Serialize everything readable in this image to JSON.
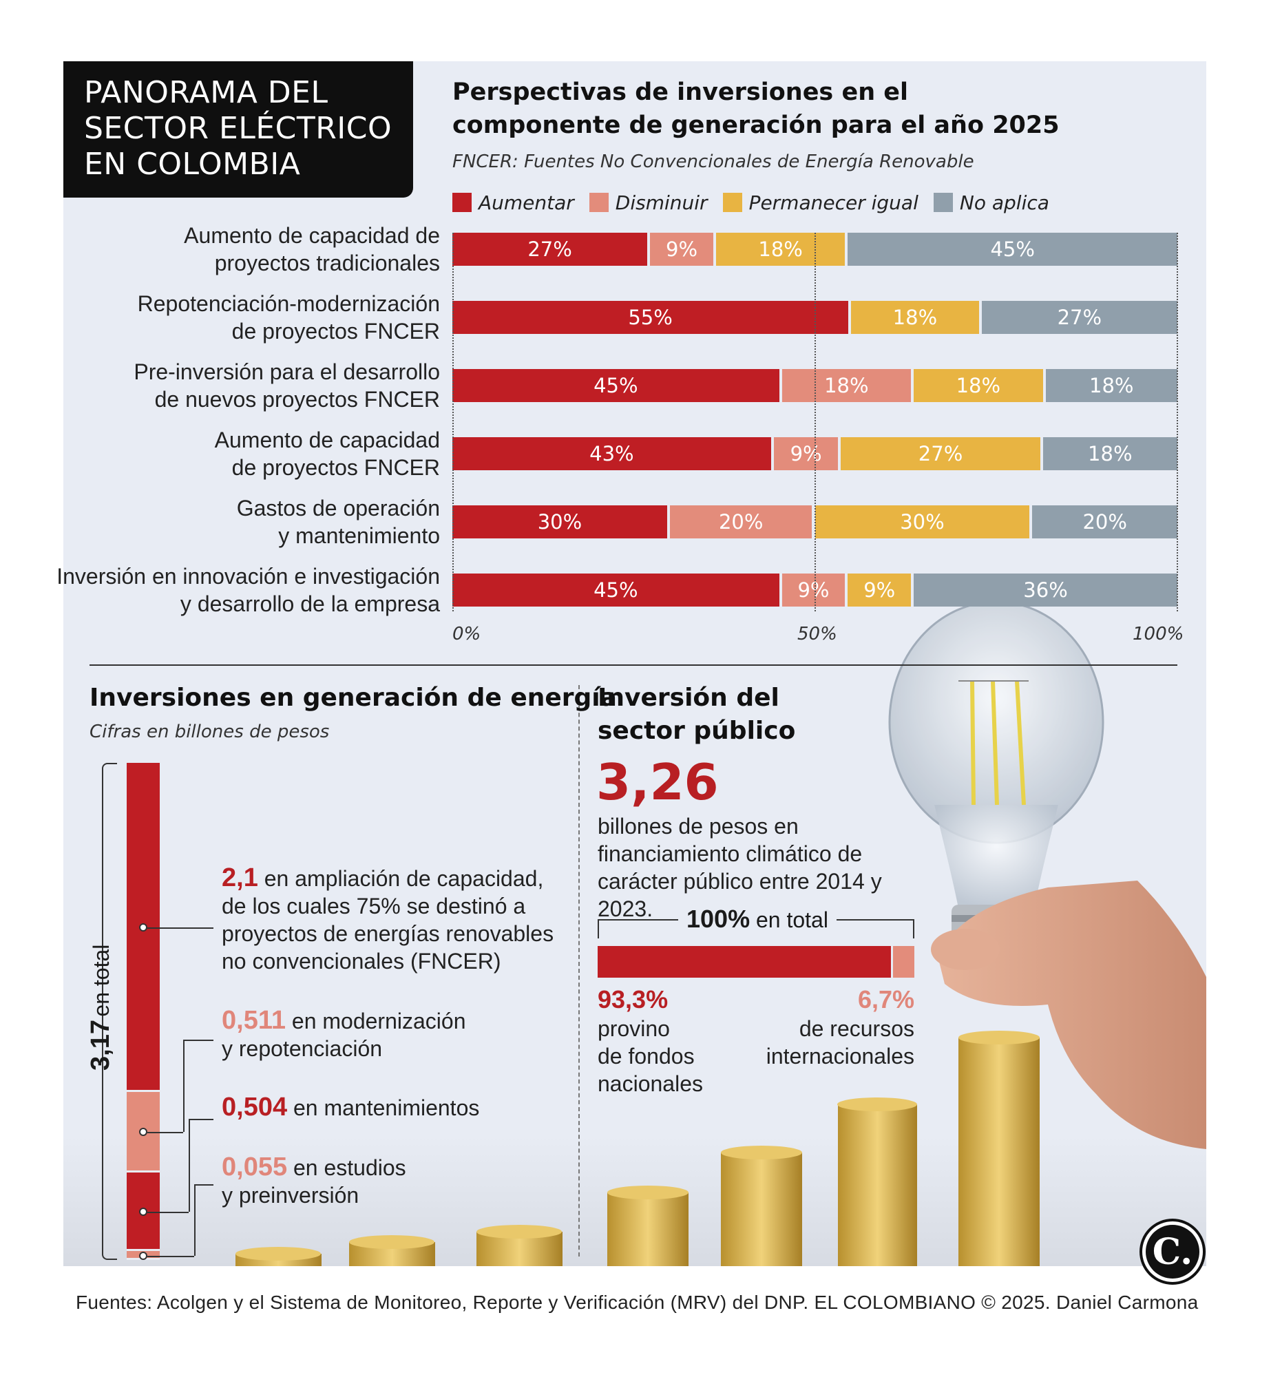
{
  "header": {
    "title_lines": [
      "PANORAMA DEL",
      "SECTOR ELÉCTRICO",
      "EN COLOMBIA"
    ]
  },
  "chart_data": [
    {
      "type": "bar",
      "orientation": "horizontal-stacked-100",
      "title_lines": [
        "Perspectivas de inversiones en el",
        "componente de generación para el año 2025"
      ],
      "subtitle": "FNCER: Fuentes No Convencionales de Energía Renovable",
      "categories": [
        [
          "Aumento de capacidad de",
          "proyectos tradicionales"
        ],
        [
          "Repotenciación-modernización",
          "de proyectos FNCER"
        ],
        [
          "Pre-inversión para el desarrollo",
          "de nuevos proyectos FNCER"
        ],
        [
          "Aumento de capacidad",
          "de proyectos FNCER"
        ],
        [
          "Gastos de operación",
          "y mantenimiento"
        ],
        [
          "Inversión en innovación e investigación",
          "y desarrollo de la empresa"
        ]
      ],
      "series": [
        {
          "name": "Aumentar",
          "color": "#bf1e24",
          "values": [
            27,
            55,
            45,
            43,
            30,
            45
          ]
        },
        {
          "name": "Disminuir",
          "color": "#e38c7b",
          "values": [
            9,
            0,
            18,
            9,
            20,
            9
          ]
        },
        {
          "name": "Permanecer igual",
          "color": "#e8b442",
          "values": [
            18,
            18,
            18,
            27,
            30,
            9
          ]
        },
        {
          "name": "No aplica",
          "color": "#909fab",
          "values": [
            45,
            27,
            18,
            18,
            20,
            36
          ]
        }
      ],
      "xticks": [
        "0%",
        "50%",
        "100%"
      ],
      "xlim": [
        0,
        100
      ],
      "grid": "dotted at 50%",
      "legend": "top"
    },
    {
      "type": "bar",
      "orientation": "vertical-stacked",
      "title": "Inversiones en generación de energía",
      "subtitle": "Cifras en billones de pesos",
      "total_value": "3,17",
      "total_label": "en total",
      "series": [
        {
          "value": "2,1",
          "amount": 2.1,
          "color": "#bf1e24",
          "label_color": "#b81f23",
          "text_lines": [
            "en ampliación de capacidad,",
            "de los cuales 75% se destinó a",
            "proyectos de energías renovables",
            "no convencionales (FNCER)"
          ]
        },
        {
          "value": "0,511",
          "amount": 0.511,
          "color": "#e38c7b",
          "label_color": "#e0867a",
          "text_lines": [
            "en modernización",
            "y repotenciación"
          ]
        },
        {
          "value": "0,504",
          "amount": 0.504,
          "color": "#bf1e24",
          "label_color": "#b81f23",
          "text_lines": [
            "en mantenimientos"
          ]
        },
        {
          "value": "0,055",
          "amount": 0.055,
          "color": "#e38c7b",
          "label_color": "#e0867a",
          "text_lines": [
            "en estudios",
            "y preinversión"
          ]
        }
      ]
    },
    {
      "type": "bar",
      "orientation": "horizontal-stacked-100",
      "title_lines": [
        "Inversión del",
        "sector público"
      ],
      "headline_value": "3,26",
      "headline_text_lines": [
        "billones de pesos en",
        "financiamiento climático de",
        "carácter público entre 2014 y 2023."
      ],
      "total_value": "100%",
      "total_label": "en total",
      "series": [
        {
          "value": "93,3%",
          "amount": 93.3,
          "color": "#bf1e24",
          "text_lines": [
            "provino",
            "de fondos",
            "nacionales"
          ]
        },
        {
          "value": "6,7%",
          "amount": 6.7,
          "color": "#e38c7b",
          "text_lines": [
            "de recursos",
            "internacionales"
          ]
        }
      ]
    }
  ],
  "footer": {
    "source": "Fuentes: Acolgen y el Sistema de Monitoreo, Reporte y Verificación (MRV) del DNP. EL COLOMBIANO © 2025. Daniel Carmona",
    "logo_letter": "C."
  }
}
